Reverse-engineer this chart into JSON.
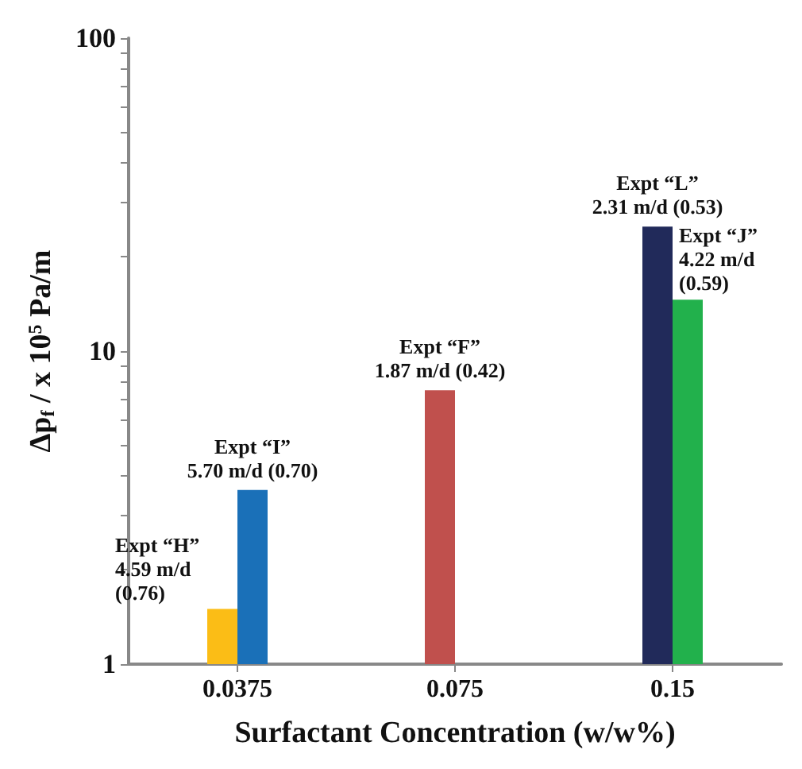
{
  "chart_data": {
    "type": "bar",
    "categories": [
      "0.0375",
      "0.075",
      "0.15"
    ],
    "xlabel": "Surfactant Concentration (w/w%)",
    "ylabel": "Δp$_{f}$ / x 10$^{5}$ Pa/m",
    "log": true,
    "ylim": [
      1,
      100
    ],
    "yticks": [
      1,
      {
        "value": 2,
        "label": null
      },
      {
        "value": 3,
        "label": null
      },
      {
        "value": 4,
        "label": null
      },
      {
        "value": 5,
        "label": null
      },
      {
        "value": 6,
        "label": null
      },
      {
        "value": 7,
        "label": null
      },
      {
        "value": 8,
        "label": null
      },
      {
        "value": 9,
        "label": null
      },
      10,
      {
        "value": 20,
        "label": null
      },
      {
        "value": 30,
        "label": null
      },
      {
        "value": 40,
        "label": null
      },
      {
        "value": 50,
        "label": null
      },
      {
        "value": 60,
        "label": null
      },
      {
        "value": 70,
        "label": null
      },
      {
        "value": 80,
        "label": null
      },
      {
        "value": 90,
        "label": null
      },
      100
    ],
    "series": [
      {
        "colors": [
          "#fbbd16",
          "#c0504d",
          "#212a5a"
        ],
        "values": [
          1.5,
          7.5,
          25
        ]
      },
      {
        "colors": [
          "#1a70b8",
          null,
          "#22b14c"
        ],
        "values": [
          3.6,
          null,
          14.6
        ]
      }
    ],
    "annotations": [
      {
        "text": "Expt “H”\n4.59 m/d\n(0.76)",
        "x": "0.0375",
        "y": 1.5
      },
      {
        "text": "Expt “I”\n5.70 m/d (0.70)",
        "x": "0.0375",
        "y": 3.6
      },
      {
        "text": "Expt “F”\n1.87 m/d (0.42)",
        "x": "0.075",
        "y": 7.5
      },
      {
        "text": "Expt “L”\n2.31 m/d (0.53)",
        "x": "0.15",
        "y": 25
      },
      {
        "text": "Expt “J”\n4.22 m/d\n(0.59)",
        "x": "0.15",
        "y": 14.6
      }
    ],
    "grid": false
  }
}
